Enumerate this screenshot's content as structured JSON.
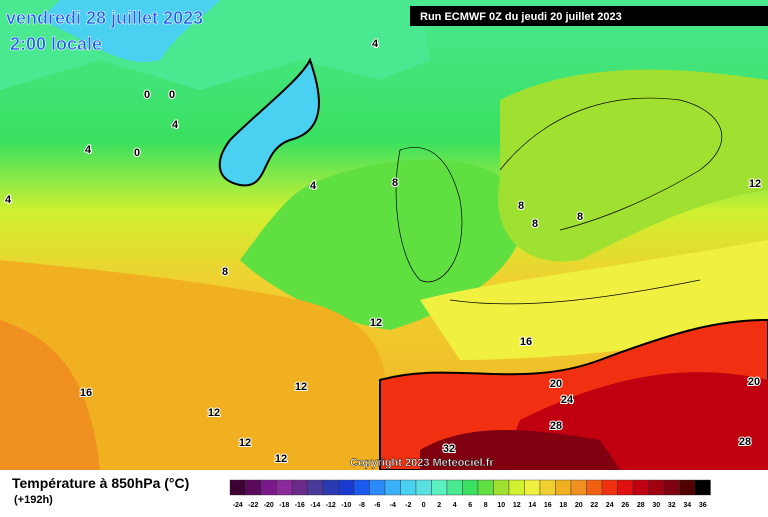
{
  "map": {
    "title": "vendredi 28 juillet 2023",
    "subtitle": "2:00 locale",
    "run": "Run ECMWF 0Z du jeudi 20 juillet 2023",
    "copyright": "Copyright 2023 Meteociel.fr",
    "contour_labels": [
      "4",
      "0",
      "0",
      "4",
      "4",
      "0",
      "4",
      "4",
      "8",
      "8",
      "8",
      "8",
      "8",
      "12",
      "12",
      "16",
      "20",
      "20",
      "24",
      "28",
      "28",
      "32",
      "16",
      "12",
      "12",
      "12",
      "12"
    ]
  },
  "legend": {
    "title": "Température à 850hPa (°C)",
    "lead": "(+192h)",
    "values": [
      "-24",
      "-22",
      "-20",
      "-18",
      "-16",
      "-14",
      "-12",
      "-10",
      "-8",
      "-6",
      "-4",
      "-2",
      "0",
      "2",
      "4",
      "6",
      "8",
      "10",
      "12",
      "14",
      "16",
      "18",
      "20",
      "22",
      "24",
      "26",
      "28",
      "30",
      "32",
      "34",
      "36"
    ],
    "colors": [
      "#3d0033",
      "#5a0a5a",
      "#7a1a8a",
      "#8c2a9c",
      "#6a2a8a",
      "#4a3a9a",
      "#2a3ab0",
      "#1a3ad0",
      "#1a5af0",
      "#2a8af8",
      "#3ab0f8",
      "#4ad0f0",
      "#5ae0e0",
      "#5af0c0",
      "#4ae890",
      "#3ae060",
      "#60e040",
      "#a0e030",
      "#d0f030",
      "#f0f040",
      "#f0d030",
      "#f0b020",
      "#f09020",
      "#f06010",
      "#f03010",
      "#e01010",
      "#c00010",
      "#a00010",
      "#800010",
      "#500000",
      "#000000"
    ]
  }
}
